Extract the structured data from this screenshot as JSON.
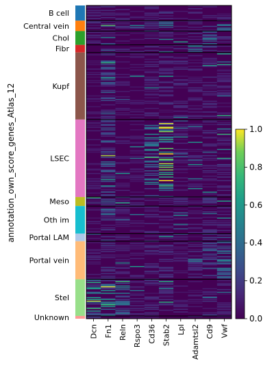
{
  "chart_data": {
    "type": "heatmap",
    "title": "",
    "ylabel": "annotation_own_score_genes_Atlas_12",
    "xlabel": "",
    "genes": [
      "Dcn",
      "Fn1",
      "Reln",
      "Rspo3",
      "Cd36",
      "Stab2",
      "Lpl",
      "Adamtsl2",
      "Cd9",
      "Vwf"
    ],
    "groups": [
      {
        "label": "B cell",
        "color": "#1f77b4",
        "size": 22
      },
      {
        "label": "Central vein",
        "color": "#ff7f0e",
        "size": 15
      },
      {
        "label": "Chol",
        "color": "#2ca02c",
        "size": 20
      },
      {
        "label": "Fibr",
        "color": "#d62728",
        "size": 11
      },
      {
        "label": "Kupf",
        "color": "#8c564b",
        "size": 97
      },
      {
        "label": "LSEC",
        "color": "#e377c2",
        "size": 112
      },
      {
        "label": "Meso",
        "color": "#bcbd22",
        "size": 13
      },
      {
        "label": "Oth im",
        "color": "#17becf",
        "size": 40
      },
      {
        "label": "Portal LAM",
        "color": "#aec7e8",
        "size": 11
      },
      {
        "label": "Portal vein",
        "color": "#ffbb78",
        "size": 55
      },
      {
        "label": "Stel",
        "color": "#98df8a",
        "size": 53
      },
      {
        "label": "Unknown",
        "color": "#ff9896",
        "size": 4
      }
    ],
    "group_profiles": [
      [
        0.08,
        0.1,
        0.08,
        0.06,
        0.08,
        0.1,
        0.06,
        0.08,
        0.08,
        0.1
      ],
      [
        0.1,
        0.15,
        0.1,
        0.2,
        0.12,
        0.3,
        0.08,
        0.1,
        0.15,
        0.25
      ],
      [
        0.08,
        0.2,
        0.08,
        0.06,
        0.1,
        0.08,
        0.06,
        0.1,
        0.25,
        0.1
      ],
      [
        0.2,
        0.22,
        0.1,
        0.08,
        0.1,
        0.08,
        0.12,
        0.3,
        0.12,
        0.1
      ],
      [
        0.06,
        0.2,
        0.06,
        0.05,
        0.08,
        0.1,
        0.1,
        0.08,
        0.1,
        0.08
      ],
      [
        0.06,
        0.22,
        0.07,
        0.06,
        0.3,
        0.55,
        0.08,
        0.08,
        0.1,
        0.12
      ],
      [
        0.2,
        0.2,
        0.15,
        0.08,
        0.1,
        0.08,
        0.1,
        0.1,
        0.15,
        0.1
      ],
      [
        0.07,
        0.22,
        0.08,
        0.06,
        0.1,
        0.08,
        0.06,
        0.08,
        0.1,
        0.1
      ],
      [
        0.08,
        0.15,
        0.08,
        0.06,
        0.1,
        0.1,
        0.06,
        0.08,
        0.15,
        0.2
      ],
      [
        0.08,
        0.12,
        0.08,
        0.07,
        0.1,
        0.1,
        0.06,
        0.1,
        0.2,
        0.25
      ],
      [
        0.4,
        0.35,
        0.3,
        0.08,
        0.1,
        0.1,
        0.08,
        0.08,
        0.12,
        0.1
      ],
      [
        0.1,
        0.1,
        0.1,
        0.06,
        0.08,
        0.08,
        0.06,
        0.08,
        0.08,
        0.08
      ]
    ],
    "colorbar": {
      "min": 0.0,
      "max": 1.0,
      "ticks": [
        "0.0",
        "0.2",
        "0.4",
        "0.6",
        "0.8",
        "1.0"
      ],
      "colormap": "viridis"
    }
  }
}
